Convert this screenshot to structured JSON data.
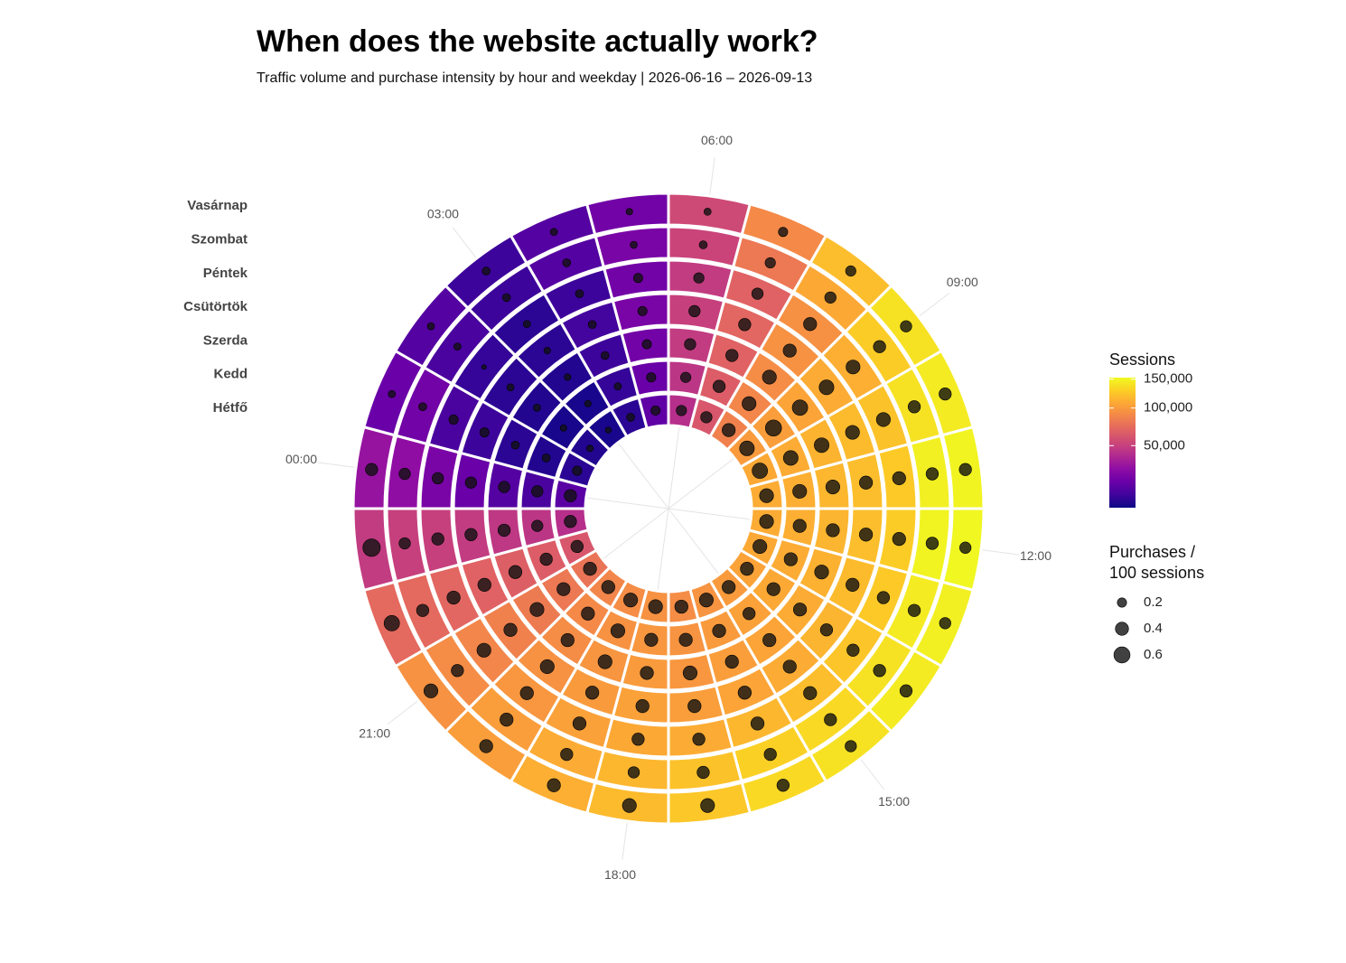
{
  "chart_data": {
    "type": "radial-heatmap",
    "title": "When does the website actually work?",
    "subtitle": "Traffic volume and purchase intensity by hour and weekday | 2026-06-16 – 2026-09-13",
    "categories": [
      "00:00",
      null,
      null,
      "03:00",
      null,
      null,
      "06:00",
      null,
      null,
      "09:00",
      null,
      null,
      "12:00",
      null,
      null,
      "15:00",
      null,
      null,
      "18:00",
      null,
      null,
      "21:00",
      null,
      null
    ],
    "series": [
      {
        "name": "Hétfő",
        "values": [
          15000,
          8000,
          7000,
          6000,
          8000,
          16000,
          42000,
          62000,
          85000,
          100000,
          108000,
          110000,
          110000,
          108000,
          105000,
          100000,
          96000,
          92000,
          95000,
          92000,
          88000,
          78000,
          62000,
          42000
        ],
        "size_values": [
          0.35,
          0.2,
          0.1,
          0.08,
          0.15,
          0.2,
          0.25,
          0.3,
          0.4,
          0.5,
          0.55,
          0.45,
          0.45,
          0.45,
          0.4,
          0.4,
          0.45,
          0.4,
          0.45,
          0.45,
          0.4,
          0.4,
          0.35,
          0.35
        ]
      },
      {
        "name": "Kedd",
        "values": [
          12000,
          7000,
          6000,
          6000,
          9000,
          18000,
          45000,
          65000,
          88000,
          102000,
          110000,
          112000,
          112000,
          110000,
          108000,
          104000,
          100000,
          96000,
          98000,
          95000,
          90000,
          80000,
          65000,
          45000
        ],
        "size_values": [
          0.3,
          0.15,
          0.1,
          0.1,
          0.12,
          0.2,
          0.25,
          0.35,
          0.45,
          0.6,
          0.5,
          0.45,
          0.4,
          0.4,
          0.4,
          0.35,
          0.4,
          0.4,
          0.4,
          0.45,
          0.4,
          0.4,
          0.35,
          0.3
        ]
      },
      {
        "name": "Szerda",
        "values": [
          14000,
          8000,
          7000,
          7000,
          10000,
          20000,
          48000,
          68000,
          92000,
          106000,
          114000,
          116000,
          115000,
          113000,
          110000,
          106000,
          102000,
          98000,
          100000,
          97000,
          92000,
          82000,
          66000,
          46000
        ],
        "size_values": [
          0.3,
          0.15,
          0.12,
          0.1,
          0.15,
          0.2,
          0.3,
          0.35,
          0.45,
          0.55,
          0.5,
          0.45,
          0.4,
          0.45,
          0.4,
          0.4,
          0.4,
          0.45,
          0.4,
          0.45,
          0.4,
          0.45,
          0.4,
          0.35
        ]
      },
      {
        "name": "Csütörtök",
        "values": [
          18000,
          10000,
          8000,
          8000,
          11000,
          22000,
          50000,
          70000,
          95000,
          110000,
          118000,
          120000,
          120000,
          118000,
          115000,
          110000,
          106000,
          102000,
          104000,
          100000,
          95000,
          85000,
          68000,
          48000
        ],
        "size_values": [
          0.3,
          0.2,
          0.12,
          0.1,
          0.15,
          0.2,
          0.3,
          0.35,
          0.4,
          0.5,
          0.45,
          0.4,
          0.4,
          0.4,
          0.35,
          0.4,
          0.4,
          0.4,
          0.4,
          0.4,
          0.45,
          0.4,
          0.4,
          0.35
        ]
      },
      {
        "name": "Péntek",
        "values": [
          22000,
          12000,
          9000,
          8000,
          10000,
          20000,
          48000,
          68000,
          94000,
          112000,
          122000,
          126000,
          128000,
          126000,
          124000,
          120000,
          116000,
          110000,
          108000,
          104000,
          98000,
          88000,
          70000,
          50000
        ],
        "size_values": [
          0.3,
          0.2,
          0.05,
          0.12,
          0.15,
          0.2,
          0.25,
          0.3,
          0.4,
          0.45,
          0.45,
          0.4,
          0.4,
          0.35,
          0.35,
          0.4,
          0.4,
          0.35,
          0.35,
          0.4,
          0.4,
          0.45,
          0.4,
          0.35
        ]
      },
      {
        "name": "Szombat",
        "values": [
          28000,
          20000,
          12000,
          10000,
          14000,
          22000,
          52000,
          80000,
          108000,
          128000,
          140000,
          148000,
          150000,
          145000,
          140000,
          135000,
          130000,
          122000,
          116000,
          110000,
          102000,
          92000,
          72000,
          50000
        ],
        "size_values": [
          0.3,
          0.15,
          0.12,
          0.15,
          0.15,
          0.12,
          0.15,
          0.25,
          0.3,
          0.35,
          0.35,
          0.35,
          0.35,
          0.35,
          0.35,
          0.35,
          0.35,
          0.35,
          0.3,
          0.35,
          0.4,
          0.35,
          0.35,
          0.3
        ]
      },
      {
        "name": "Vasárnap",
        "values": [
          30000,
          18000,
          14000,
          10000,
          14000,
          20000,
          55000,
          90000,
          120000,
          140000,
          145000,
          150000,
          152000,
          148000,
          145000,
          140000,
          135000,
          125000,
          118000,
          112000,
          102000,
          95000,
          72000,
          48000
        ],
        "size_values": [
          0.35,
          0.12,
          0.12,
          0.15,
          0.12,
          0.1,
          0.12,
          0.2,
          0.25,
          0.3,
          0.35,
          0.35,
          0.3,
          0.3,
          0.35,
          0.3,
          0.35,
          0.45,
          0.45,
          0.4,
          0.4,
          0.45,
          0.55,
          0.7
        ]
      }
    ],
    "color_scale": {
      "title": "Sessions",
      "transform": "sqrt",
      "colormap": "plasma",
      "lim": [
        5000,
        153000
      ],
      "ticks": [
        {
          "value": 50000,
          "label": "50,000"
        },
        {
          "value": 100000,
          "label": "100,000"
        },
        {
          "value": 150000,
          "label": "150,000"
        }
      ]
    },
    "size_scale": {
      "title": [
        "Purchases /",
        "100 sessions"
      ],
      "lim": [
        0,
        0.75
      ],
      "ticks": [
        0.2,
        0.4,
        0.6
      ]
    }
  }
}
